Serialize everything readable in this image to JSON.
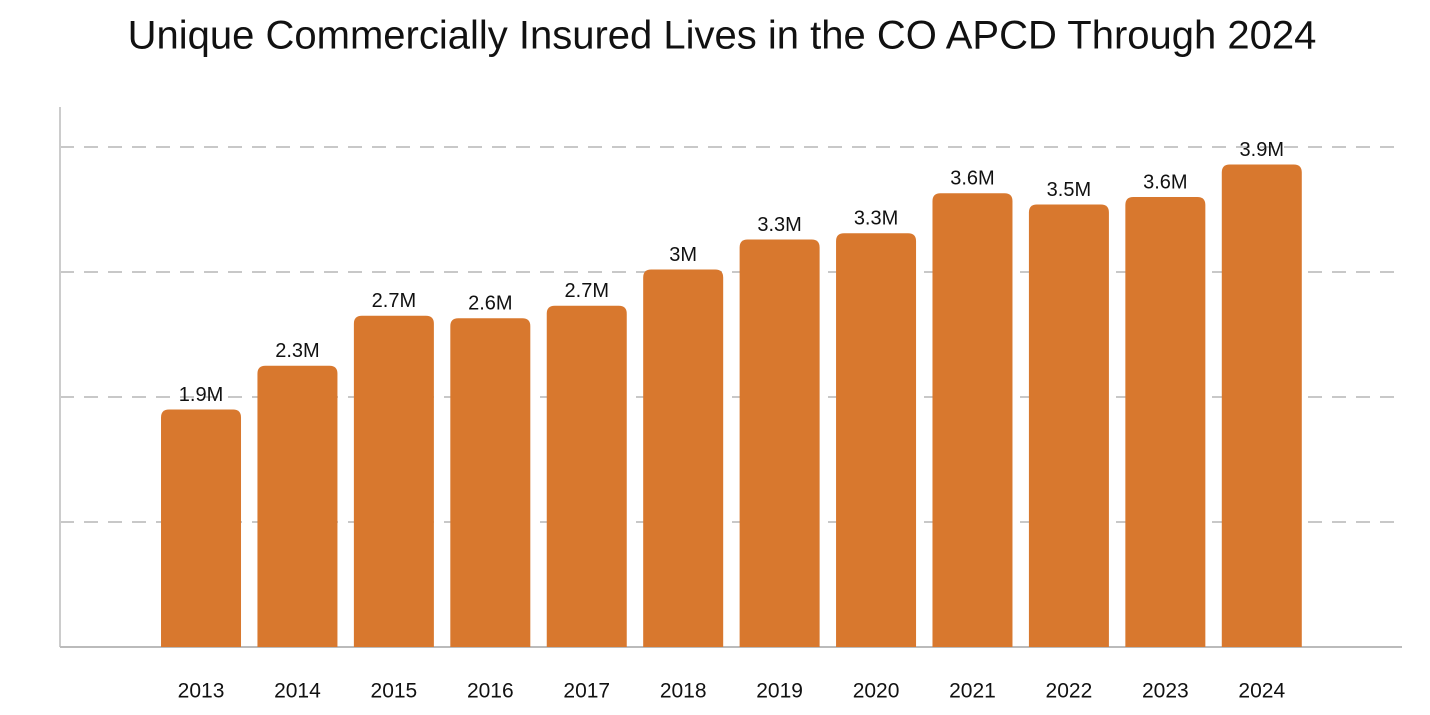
{
  "chart_data": {
    "type": "bar",
    "title": "Unique Commercially Insured Lives in the CO APCD Through 2024",
    "categories": [
      "2013",
      "2014",
      "2015",
      "2016",
      "2017",
      "2018",
      "2019",
      "2020",
      "2021",
      "2022",
      "2023",
      "2024"
    ],
    "values": [
      1.9,
      2.25,
      2.65,
      2.63,
      2.73,
      3.02,
      3.26,
      3.31,
      3.63,
      3.54,
      3.6,
      3.86
    ],
    "value_labels": [
      "1.9M",
      "2.3M",
      "2.7M",
      "2.6M",
      "2.7M",
      "3M",
      "3.3M",
      "3.3M",
      "3.6M",
      "3.5M",
      "3.6M",
      "3.9M"
    ],
    "color": "#d8782e",
    "ylim": [
      0,
      4.32
    ],
    "yticks": [
      1,
      2,
      3,
      4
    ],
    "grid": true
  }
}
